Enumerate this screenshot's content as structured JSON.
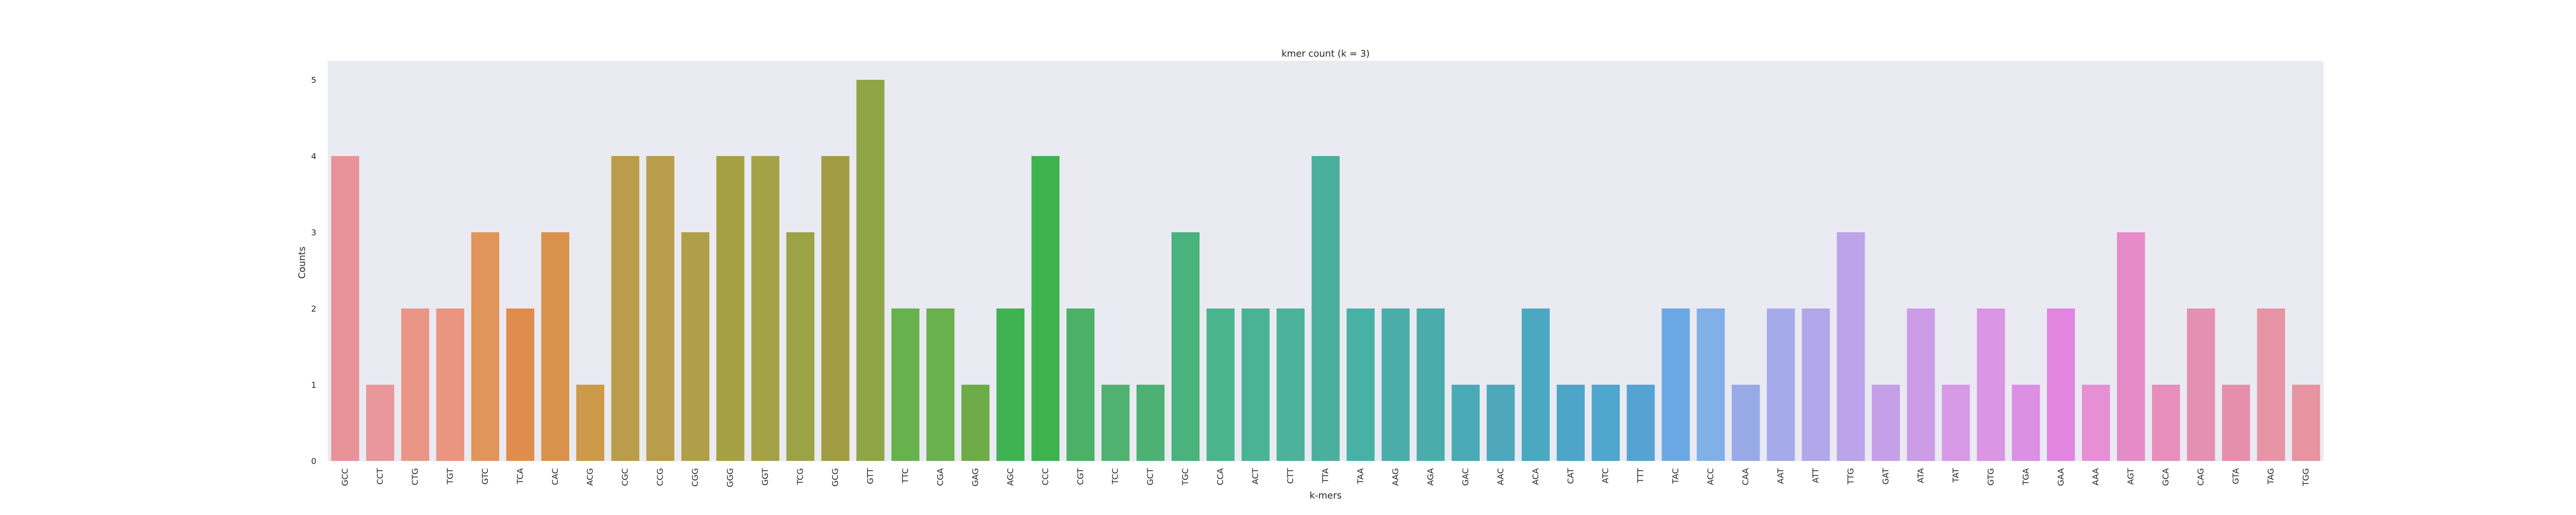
{
  "chart_data": {
    "type": "bar",
    "title": "kmer count (k = 3)",
    "xlabel": "k-mers",
    "ylabel": "Counts",
    "ylim": [
      0,
      5.25
    ],
    "yticks": [
      0,
      1,
      2,
      3,
      4,
      5
    ],
    "grid": false,
    "background": "#eaeaf2",
    "categories": [
      "GCC",
      "CCT",
      "CTG",
      "TGT",
      "GTC",
      "TCA",
      "CAC",
      "ACG",
      "CGC",
      "CCG",
      "CGG",
      "GGG",
      "GGT",
      "TCG",
      "GCG",
      "GTT",
      "TTC",
      "CGA",
      "GAG",
      "AGC",
      "CCC",
      "CGT",
      "TCC",
      "GCT",
      "TGC",
      "CCA",
      "ACT",
      "CTT",
      "TTA",
      "TAA",
      "AAG",
      "AGA",
      "GAC",
      "AAC",
      "ACA",
      "CAT",
      "ATC",
      "TTT",
      "TAC",
      "ACC",
      "CAA",
      "AAT",
      "ATT",
      "TTG",
      "GAT",
      "ATA",
      "TAT",
      "GTG",
      "TGA",
      "GAA",
      "AAA",
      "AGT",
      "GCA",
      "CAG",
      "GTA",
      "TAG",
      "TGG"
    ],
    "values": [
      4,
      1,
      2,
      2,
      3,
      2,
      3,
      1,
      4,
      4,
      3,
      4,
      4,
      3,
      4,
      5,
      2,
      2,
      1,
      2,
      4,
      2,
      1,
      1,
      3,
      2,
      2,
      2,
      4,
      2,
      2,
      2,
      1,
      1,
      2,
      1,
      1,
      1,
      2,
      2,
      1,
      2,
      2,
      3,
      1,
      2,
      1,
      2,
      1,
      2,
      1,
      3,
      1,
      2,
      1,
      2,
      1
    ],
    "colors": [
      "#e8939a",
      "#e8979b",
      "#e99686",
      "#e99580",
      "#e1955a",
      "#df8c4c",
      "#d9924c",
      "#cc9a48",
      "#b99d4a",
      "#b99d4a",
      "#b09e48",
      "#a6a044",
      "#a4a146",
      "#9ba346",
      "#a19c42",
      "#8fa546",
      "#68b24e",
      "#69b04f",
      "#6dac48",
      "#3fb251",
      "#3eb24d",
      "#4cb166",
      "#50b170",
      "#4cb173",
      "#4ab27c",
      "#4ab48e",
      "#4bb395",
      "#4cb29c",
      "#4ab09d",
      "#48b1a6",
      "#4aada9",
      "#4aadac",
      "#4aaab5",
      "#4ea7bb",
      "#4aa8c0",
      "#4ea6c7",
      "#4fa6cf",
      "#55a3d3",
      "#6ba8e3",
      "#80b0e6",
      "#97aae6",
      "#a5abea",
      "#b2a7ea",
      "#bba4ea",
      "#c59fe7",
      "#cc9ce7",
      "#d69ae7",
      "#da95e4",
      "#dc90e3",
      "#e285e1",
      "#e68fd5",
      "#e58cc8",
      "#e78ebd",
      "#e490b4",
      "#e58fad",
      "#e694a6",
      "#e6949f"
    ]
  }
}
